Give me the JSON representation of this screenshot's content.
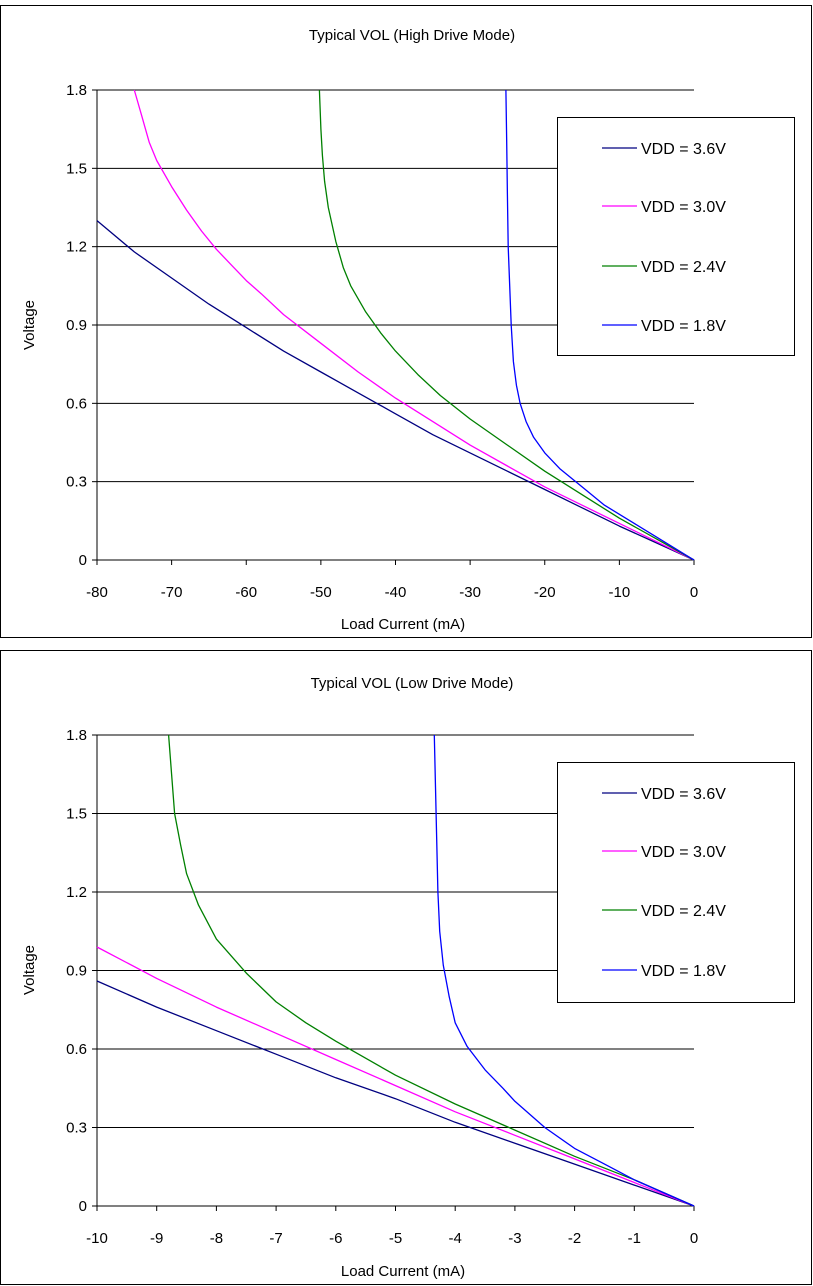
{
  "chart_data": [
    {
      "type": "line",
      "title": "Typical VOL (High Drive Mode)",
      "xlabel": "Load Current (mA)",
      "ylabel": "Voltage",
      "xlim": [
        -80,
        0
      ],
      "ylim": [
        0,
        1.8
      ],
      "xticks": [
        "-80",
        "-70",
        "-60",
        "-50",
        "-40",
        "-30",
        "-20",
        "-10",
        "0"
      ],
      "yticks": [
        "0",
        "0.3",
        "0.6",
        "0.9",
        "1.2",
        "1.5",
        "1.8"
      ],
      "grid": "horizontal",
      "legend_position": "top-right",
      "series": [
        {
          "name": "VDD = 3.6V",
          "color": "#000080",
          "x": [
            -80,
            -75,
            -70,
            -65,
            -60,
            -55,
            -50,
            -45,
            -40,
            -35,
            -30,
            -25,
            -20,
            -15,
            -10,
            -5,
            0
          ],
          "y": [
            1.3,
            1.18,
            1.08,
            0.98,
            0.89,
            0.8,
            0.72,
            0.64,
            0.56,
            0.48,
            0.41,
            0.34,
            0.27,
            0.2,
            0.13,
            0.065,
            0
          ]
        },
        {
          "name": "VDD = 3.0V",
          "color": "#ff00ff",
          "x": [
            -75,
            -74,
            -73,
            -72,
            -70,
            -68,
            -66,
            -64,
            -62,
            -60,
            -58,
            -55,
            -50,
            -45,
            -40,
            -35,
            -30,
            -25,
            -20,
            -15,
            -10,
            -5,
            0
          ],
          "y": [
            1.8,
            1.7,
            1.6,
            1.53,
            1.43,
            1.34,
            1.26,
            1.19,
            1.13,
            1.07,
            1.02,
            0.94,
            0.83,
            0.72,
            0.62,
            0.53,
            0.44,
            0.36,
            0.28,
            0.21,
            0.14,
            0.07,
            0
          ]
        },
        {
          "name": "VDD = 2.4V",
          "color": "#008000",
          "x": [
            -50.2,
            -50,
            -49.8,
            -49.5,
            -49,
            -48,
            -47,
            -46,
            -44,
            -42,
            -40,
            -37,
            -34,
            -30,
            -25,
            -20,
            -15,
            -10,
            -5,
            0
          ],
          "y": [
            1.8,
            1.65,
            1.55,
            1.45,
            1.35,
            1.22,
            1.12,
            1.05,
            0.95,
            0.87,
            0.8,
            0.71,
            0.63,
            0.54,
            0.44,
            0.34,
            0.25,
            0.16,
            0.08,
            0
          ]
        },
        {
          "name": "VDD = 1.8V",
          "color": "#0000ff",
          "x": [
            -25.2,
            -25.1,
            -25,
            -24.9,
            -24.7,
            -24.5,
            -24.2,
            -23.8,
            -23.3,
            -22.5,
            -21.5,
            -20,
            -18,
            -15,
            -12,
            -8,
            -4,
            0
          ],
          "y": [
            1.8,
            1.6,
            1.4,
            1.2,
            1.05,
            0.9,
            0.76,
            0.67,
            0.6,
            0.53,
            0.47,
            0.41,
            0.35,
            0.28,
            0.21,
            0.14,
            0.07,
            0
          ]
        }
      ]
    },
    {
      "type": "line",
      "title": "Typical VOL (Low Drive Mode)",
      "xlabel": "Load Current (mA)",
      "ylabel": "Voltage",
      "xlim": [
        -10,
        0
      ],
      "ylim": [
        0,
        1.8
      ],
      "xticks": [
        "-10",
        "-9",
        "-8",
        "-7",
        "-6",
        "-5",
        "-4",
        "-3",
        "-2",
        "-1",
        "0"
      ],
      "yticks": [
        "0",
        "0.3",
        "0.6",
        "0.9",
        "1.2",
        "1.5",
        "1.8"
      ],
      "grid": "horizontal",
      "legend_position": "top-right",
      "series": [
        {
          "name": "VDD = 3.6V",
          "color": "#000080",
          "x": [
            -10,
            -9,
            -8,
            -7,
            -6,
            -5,
            -4,
            -3,
            -2,
            -1,
            0
          ],
          "y": [
            0.86,
            0.76,
            0.67,
            0.58,
            0.49,
            0.41,
            0.32,
            0.24,
            0.16,
            0.08,
            0
          ]
        },
        {
          "name": "VDD = 3.0V",
          "color": "#ff00ff",
          "x": [
            -10,
            -9,
            -8,
            -7,
            -6,
            -5,
            -4,
            -3,
            -2,
            -1,
            0
          ],
          "y": [
            0.99,
            0.87,
            0.76,
            0.66,
            0.56,
            0.46,
            0.36,
            0.27,
            0.18,
            0.09,
            0
          ]
        },
        {
          "name": "VDD = 2.4V",
          "color": "#008000",
          "x": [
            -8.8,
            -8.75,
            -8.7,
            -8.6,
            -8.5,
            -8.3,
            -8,
            -7.5,
            -7,
            -6.5,
            -6,
            -5,
            -4,
            -3,
            -2,
            -1,
            0
          ],
          "y": [
            1.8,
            1.65,
            1.5,
            1.38,
            1.27,
            1.15,
            1.02,
            0.89,
            0.78,
            0.7,
            0.63,
            0.5,
            0.39,
            0.29,
            0.19,
            0.1,
            0
          ]
        },
        {
          "name": "VDD = 1.8V",
          "color": "#0000ff",
          "x": [
            -4.35,
            -4.33,
            -4.31,
            -4.29,
            -4.26,
            -4.2,
            -4.1,
            -4,
            -3.8,
            -3.5,
            -3.2,
            -3,
            -2.5,
            -2,
            -1.5,
            -1,
            -0.5,
            0
          ],
          "y": [
            1.8,
            1.6,
            1.4,
            1.2,
            1.05,
            0.92,
            0.8,
            0.7,
            0.61,
            0.52,
            0.45,
            0.4,
            0.3,
            0.22,
            0.16,
            0.1,
            0.05,
            0
          ]
        }
      ]
    }
  ]
}
